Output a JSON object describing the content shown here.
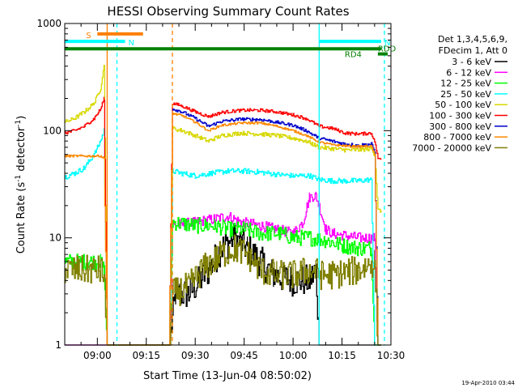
{
  "chart_data": {
    "type": "line",
    "title": "HESSI Observing Summary Count Rates",
    "xlabel": "Start Time (13-Jun-04 08:50:02)",
    "ylabel_main": "Count Rate (s",
    "ylabel_sup1": "-1",
    "ylabel_mid": " detector",
    "ylabel_sup2": "-1",
    "ylabel_end": ")",
    "footer": "19-Apr-2010 03:44",
    "y_scale": "log",
    "ylim": [
      1,
      1000
    ],
    "xlim": [
      530,
      630
    ],
    "y_ticks": [
      {
        "value": 1,
        "label": "1"
      },
      {
        "value": 10,
        "label": "10"
      },
      {
        "value": 100,
        "label": "100"
      },
      {
        "value": 1000,
        "label": "1000"
      }
    ],
    "x_ticks": [
      {
        "value": 540,
        "label": "09:00"
      },
      {
        "value": 555,
        "label": "09:15"
      },
      {
        "value": 570,
        "label": "09:30"
      },
      {
        "value": 585,
        "label": "09:45"
      },
      {
        "value": 600,
        "label": "10:00"
      },
      {
        "value": 615,
        "label": "10:15"
      },
      {
        "value": 630,
        "label": "10:30"
      }
    ],
    "legend": {
      "header1": "Det 1,3,4,5,6,9,",
      "header2": "FDecim 1, Att 0",
      "entries": [
        {
          "label": "3 - 6 keV",
          "color": "#000000"
        },
        {
          "label": "6 - 12 keV",
          "color": "#ff00ff"
        },
        {
          "label": "12 - 25 keV",
          "color": "#00ff00"
        },
        {
          "label": "25 - 50 keV",
          "color": "#00ffff"
        },
        {
          "label": "50 - 100 keV",
          "color": "#d8d800"
        },
        {
          "label": "100 - 300 keV",
          "color": "#ff0000"
        },
        {
          "label": "300 - 800 keV",
          "color": "#0000cc"
        },
        {
          "label": "800 - 7000 keV",
          "color": "#ff8800"
        },
        {
          "label": "7000 - 20000 keV",
          "color": "#808000"
        }
      ]
    },
    "flags": [
      {
        "label": "S",
        "color": "#ff7f00",
        "y": 800,
        "x0": 540,
        "x1": 554
      },
      {
        "label": "N",
        "color": "#00ffff",
        "y": 680,
        "x0": 530,
        "x1": 548.5
      },
      {
        "label": "N",
        "color": "#00ffff",
        "y": 680,
        "x0": 608,
        "x1": 627
      },
      {
        "label": "RD4",
        "color": "#008000",
        "y": 580,
        "x0": 530,
        "x1": 627
      },
      {
        "label": "RDD",
        "color": "#008000",
        "y": 520,
        "x0": 626,
        "x1": 629
      }
    ],
    "vlines": [
      {
        "x": 543,
        "color": "#ff7f00",
        "dash": false
      },
      {
        "x": 546,
        "color": "#00ffff",
        "dash": true
      },
      {
        "x": 563,
        "color": "#ff7f00",
        "dash": true
      },
      {
        "x": 608,
        "color": "#00ffff",
        "dash": false
      },
      {
        "x": 628,
        "color": "#00ffff",
        "dash": true
      }
    ],
    "series": [
      {
        "name": "3 - 6 keV",
        "color": "#000000",
        "noise": 0.3,
        "points": [
          [
            530,
            1
          ],
          [
            541,
            1
          ],
          [
            562,
            1
          ],
          [
            564,
            3
          ],
          [
            568,
            3
          ],
          [
            574,
            5
          ],
          [
            578,
            8
          ],
          [
            582,
            10
          ],
          [
            586,
            8
          ],
          [
            590,
            6
          ],
          [
            594,
            4.5
          ],
          [
            600,
            4
          ],
          [
            605,
            4
          ],
          [
            607,
            5
          ],
          [
            608,
            1
          ],
          [
            627,
            1
          ]
        ]
      },
      {
        "name": "6 - 12 keV",
        "color": "#ff00ff",
        "noise": 0.1,
        "points": [
          [
            530,
            1
          ],
          [
            541,
            1
          ],
          [
            562,
            1
          ],
          [
            563,
            13
          ],
          [
            570,
            14
          ],
          [
            576,
            15
          ],
          [
            580,
            16
          ],
          [
            584,
            14
          ],
          [
            590,
            13
          ],
          [
            595,
            12
          ],
          [
            600,
            11
          ],
          [
            603,
            14
          ],
          [
            605,
            24
          ],
          [
            607,
            25
          ],
          [
            610,
            12
          ],
          [
            612,
            11
          ],
          [
            620,
            10
          ],
          [
            625,
            10
          ],
          [
            626,
            1
          ]
        ]
      },
      {
        "name": "12 - 25 keV",
        "color": "#00ff00",
        "noise": 0.15,
        "points": [
          [
            530,
            6
          ],
          [
            541,
            6
          ],
          [
            542,
            5
          ],
          [
            543,
            1
          ],
          [
            562,
            1
          ],
          [
            563,
            14
          ],
          [
            570,
            13
          ],
          [
            576,
            13
          ],
          [
            580,
            12
          ],
          [
            585,
            12
          ],
          [
            590,
            11
          ],
          [
            596,
            11
          ],
          [
            600,
            10
          ],
          [
            605,
            10
          ],
          [
            610,
            9.5
          ],
          [
            615,
            8.5
          ],
          [
            620,
            8
          ],
          [
            624,
            8
          ],
          [
            625,
            1
          ],
          [
            627,
            1
          ]
        ]
      },
      {
        "name": "25 - 50 keV",
        "color": "#00ffff",
        "noise": 0.05,
        "points": [
          [
            530,
            37
          ],
          [
            533,
            40
          ],
          [
            536,
            45
          ],
          [
            539,
            60
          ],
          [
            541,
            80
          ],
          [
            542,
            100
          ],
          [
            543,
            1
          ],
          [
            562,
            1
          ],
          [
            563,
            42
          ],
          [
            566,
            40
          ],
          [
            570,
            38
          ],
          [
            575,
            40
          ],
          [
            580,
            42
          ],
          [
            585,
            42
          ],
          [
            590,
            41
          ],
          [
            595,
            39
          ],
          [
            600,
            38
          ],
          [
            605,
            38
          ],
          [
            608,
            35
          ],
          [
            612,
            34
          ],
          [
            616,
            34
          ],
          [
            620,
            34
          ],
          [
            624,
            35
          ],
          [
            625,
            1
          ],
          [
            627,
            1
          ]
        ]
      },
      {
        "name": "50 - 100 keV",
        "color": "#d8d800",
        "noise": 0.04,
        "points": [
          [
            530,
            120
          ],
          [
            533,
            130
          ],
          [
            536,
            150
          ],
          [
            539,
            180
          ],
          [
            541,
            250
          ],
          [
            542,
            400
          ],
          [
            543,
            1
          ],
          [
            562,
            1
          ],
          [
            563,
            105
          ],
          [
            566,
            100
          ],
          [
            570,
            90
          ],
          [
            574,
            80
          ],
          [
            578,
            90
          ],
          [
            584,
            95
          ],
          [
            590,
            93
          ],
          [
            595,
            90
          ],
          [
            600,
            85
          ],
          [
            604,
            80
          ],
          [
            608,
            70
          ],
          [
            612,
            68
          ],
          [
            616,
            66
          ],
          [
            620,
            66
          ],
          [
            624,
            68
          ],
          [
            625,
            60
          ],
          [
            626,
            18
          ],
          [
            627,
            18
          ]
        ]
      },
      {
        "name": "100 - 300 keV",
        "color": "#ff0000",
        "noise": 0.03,
        "points": [
          [
            530,
            95
          ],
          [
            533,
            100
          ],
          [
            536,
            110
          ],
          [
            539,
            130
          ],
          [
            541,
            160
          ],
          [
            542,
            200
          ],
          [
            543,
            1
          ],
          [
            562,
            1
          ],
          [
            563,
            180
          ],
          [
            566,
            170
          ],
          [
            570,
            150
          ],
          [
            574,
            135
          ],
          [
            578,
            148
          ],
          [
            584,
            155
          ],
          [
            590,
            155
          ],
          [
            595,
            150
          ],
          [
            600,
            140
          ],
          [
            604,
            130
          ],
          [
            608,
            110
          ],
          [
            612,
            105
          ],
          [
            616,
            95
          ],
          [
            620,
            93
          ],
          [
            624,
            95
          ],
          [
            625,
            80
          ],
          [
            626,
            55
          ],
          [
            627,
            55
          ]
        ]
      },
      {
        "name": "300 - 800 keV",
        "color": "#0000cc",
        "noise": 0.03,
        "points": [
          [
            563,
            160
          ],
          [
            566,
            150
          ],
          [
            570,
            130
          ],
          [
            574,
            110
          ],
          [
            578,
            122
          ],
          [
            584,
            128
          ],
          [
            590,
            127
          ],
          [
            595,
            120
          ],
          [
            600,
            112
          ],
          [
            604,
            100
          ],
          [
            608,
            85
          ],
          [
            612,
            80
          ],
          [
            616,
            75
          ],
          [
            620,
            73
          ],
          [
            624,
            75
          ],
          [
            625,
            65
          ],
          [
            626,
            1
          ],
          [
            627,
            1
          ]
        ]
      },
      {
        "name": "800 - 7000 keV",
        "color": "#ff8800",
        "noise": 0.02,
        "points": [
          [
            530,
            58
          ],
          [
            541,
            58
          ],
          [
            542,
            55
          ],
          [
            543,
            1
          ],
          [
            562,
            1
          ],
          [
            563,
            145
          ],
          [
            566,
            138
          ],
          [
            570,
            120
          ],
          [
            574,
            100
          ],
          [
            578,
            112
          ],
          [
            584,
            118
          ],
          [
            590,
            118
          ],
          [
            595,
            110
          ],
          [
            600,
            100
          ],
          [
            604,
            90
          ],
          [
            608,
            78
          ],
          [
            612,
            74
          ],
          [
            616,
            72
          ],
          [
            620,
            71
          ],
          [
            624,
            72
          ],
          [
            625,
            60
          ],
          [
            626,
            1
          ],
          [
            627,
            1
          ]
        ]
      },
      {
        "name": "7000 - 20000 keV",
        "color": "#808000",
        "noise": 0.28,
        "points": [
          [
            530,
            5
          ],
          [
            541,
            5
          ],
          [
            542,
            4.5
          ],
          [
            543,
            1
          ],
          [
            562,
            1
          ],
          [
            563,
            3
          ],
          [
            568,
            3.5
          ],
          [
            572,
            5
          ],
          [
            578,
            7
          ],
          [
            582,
            8
          ],
          [
            586,
            7
          ],
          [
            590,
            5
          ],
          [
            595,
            4.5
          ],
          [
            600,
            4.5
          ],
          [
            605,
            5
          ],
          [
            607,
            4.8
          ],
          [
            608,
            4.5
          ],
          [
            612,
            4.5
          ],
          [
            620,
            5
          ],
          [
            625,
            6
          ],
          [
            626,
            1
          ],
          [
            627,
            1
          ]
        ]
      }
    ]
  }
}
